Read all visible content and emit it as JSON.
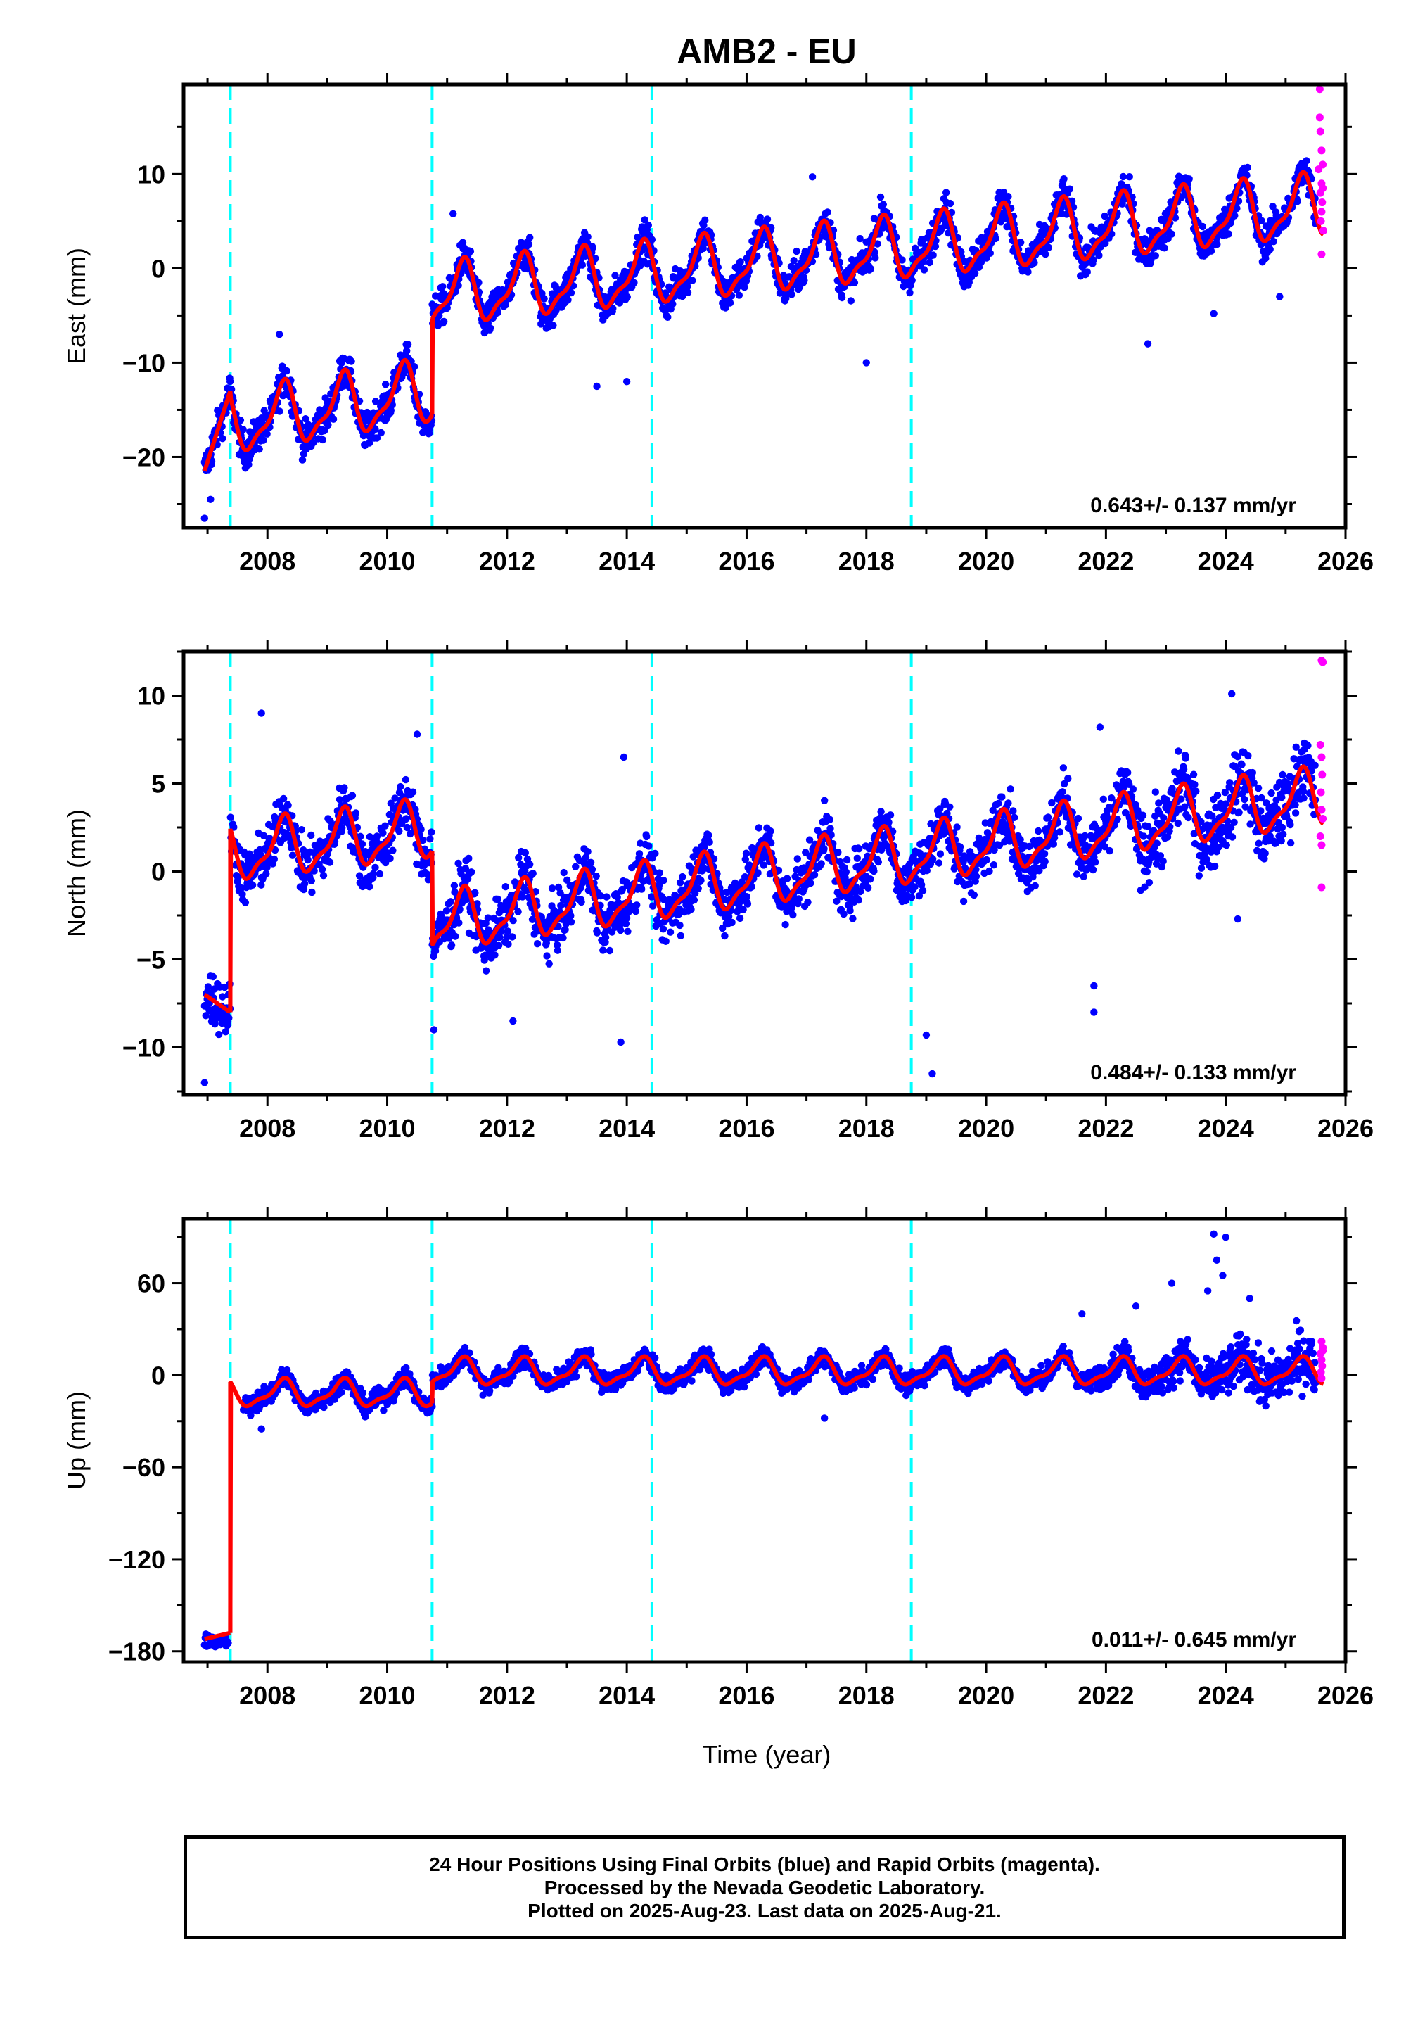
{
  "title": "AMB2 - EU",
  "xlabel": "Time (year)",
  "colors": {
    "final_orbits": "#0000ff",
    "rapid_orbits": "#ff00ff",
    "model": "#ff0000",
    "events": "#00ffff",
    "frame": "#000000"
  },
  "chart_data": [
    {
      "type": "scatter",
      "panel": "east",
      "ylabel": "East (mm)",
      "rate_label": "0.643+/- 0.137 mm/yr",
      "xlim": [
        2006.6,
        2026.0
      ],
      "ylim": [
        -27.5,
        19.5
      ],
      "xticks": [
        2008,
        2010,
        2012,
        2014,
        2016,
        2018,
        2020,
        2022,
        2024,
        2026
      ],
      "yticks": [
        -20,
        -10,
        0,
        10
      ],
      "event_lines": [
        2007.38,
        2010.75,
        2014.42,
        2018.75
      ],
      "series": [
        {
          "name": "Final Orbits",
          "color": "#0000ff",
          "span": [
            2006.95,
            2025.5
          ],
          "spread": 1.8
        },
        {
          "name": "Rapid Orbits",
          "color": "#ff00ff",
          "span": [
            2025.5,
            2025.65
          ]
        },
        {
          "name": "Model",
          "color": "#ff0000"
        }
      ],
      "model_segments": [
        {
          "x": [
            2006.95,
            2007.38
          ],
          "y": [
            -21.5,
            -13.0
          ]
        },
        {
          "x": [
            2007.38,
            2010.75
          ],
          "y_start": -16.5,
          "trend": 1.0,
          "annual_amplitude": 3.0
        },
        {
          "x": [
            2010.75,
            2025.63
          ],
          "y_start": -3.0,
          "trend": 0.643,
          "annual_amplitude": 3.0
        }
      ],
      "outliers": [
        {
          "x": 2006.95,
          "y": -26.5
        },
        {
          "x": 2007.05,
          "y": -24.5
        },
        {
          "x": 2008.2,
          "y": -7.0
        },
        {
          "x": 2011.1,
          "y": 5.8
        },
        {
          "x": 2013.5,
          "y": -12.5
        },
        {
          "x": 2014.0,
          "y": -12.0
        },
        {
          "x": 2017.1,
          "y": 9.7
        },
        {
          "x": 2018.0,
          "y": -10.0
        },
        {
          "x": 2022.7,
          "y": -8.0
        },
        {
          "x": 2023.8,
          "y": -4.8
        },
        {
          "x": 2024.9,
          "y": -3.0
        }
      ],
      "rapid_points": [
        {
          "x": 2025.57,
          "y": 19.0
        },
        {
          "x": 2025.57,
          "y": 16.0
        },
        {
          "x": 2025.58,
          "y": 14.5
        },
        {
          "x": 2025.6,
          "y": 12.5
        },
        {
          "x": 2025.62,
          "y": 11.0
        },
        {
          "x": 2025.6,
          "y": 9.0
        },
        {
          "x": 2025.58,
          "y": 8.0
        },
        {
          "x": 2025.61,
          "y": 7.0
        },
        {
          "x": 2025.6,
          "y": 6.0
        },
        {
          "x": 2025.59,
          "y": 5.0
        },
        {
          "x": 2025.63,
          "y": 4.0
        },
        {
          "x": 2025.6,
          "y": 1.5
        },
        {
          "x": 2025.55,
          "y": 10.5
        },
        {
          "x": 2025.62,
          "y": 8.5
        }
      ]
    },
    {
      "type": "scatter",
      "panel": "north",
      "ylabel": "North (mm)",
      "rate_label": "0.484+/- 0.133 mm/yr",
      "xlim": [
        2006.6,
        2026.0
      ],
      "ylim": [
        -12.7,
        12.5
      ],
      "xticks": [
        2008,
        2010,
        2012,
        2014,
        2016,
        2018,
        2020,
        2022,
        2024,
        2026
      ],
      "yticks": [
        -10,
        -5,
        0,
        5,
        10
      ],
      "event_lines": [
        2007.38,
        2010.75,
        2014.42,
        2018.75
      ],
      "series": [
        {
          "name": "Final Orbits",
          "color": "#0000ff",
          "span": [
            2006.95,
            2025.5
          ],
          "spread": 1.5
        },
        {
          "name": "Rapid Orbits",
          "color": "#ff00ff",
          "span": [
            2025.5,
            2025.65
          ]
        },
        {
          "name": "Model",
          "color": "#ff0000"
        }
      ],
      "model_segments": [
        {
          "x": [
            2006.95,
            2007.38
          ],
          "y": [
            -7.0,
            -8.0
          ]
        },
        {
          "x": [
            2007.38,
            2010.75
          ],
          "y_start": 1.0,
          "trend": 0.4,
          "annual_amplitude": 1.5
        },
        {
          "x": [
            2010.75,
            2025.63
          ],
          "y_start": -3.0,
          "trend": 0.484,
          "annual_amplitude": 1.5
        }
      ],
      "outliers": [
        {
          "x": 2006.95,
          "y": -12.0
        },
        {
          "x": 2007.9,
          "y": 9.0
        },
        {
          "x": 2010.5,
          "y": 7.8
        },
        {
          "x": 2010.78,
          "y": -9.0
        },
        {
          "x": 2012.1,
          "y": -8.5
        },
        {
          "x": 2013.9,
          "y": -9.7
        },
        {
          "x": 2013.95,
          "y": 6.5
        },
        {
          "x": 2019.0,
          "y": -9.3
        },
        {
          "x": 2019.1,
          "y": -11.5
        },
        {
          "x": 2021.8,
          "y": -8.0
        },
        {
          "x": 2021.9,
          "y": 8.2
        },
        {
          "x": 2024.1,
          "y": 10.1
        },
        {
          "x": 2024.2,
          "y": -2.7
        },
        {
          "x": 2021.8,
          "y": -6.5
        }
      ],
      "rapid_points": [
        {
          "x": 2025.6,
          "y": 12.0
        },
        {
          "x": 2025.62,
          "y": 11.9
        },
        {
          "x": 2025.58,
          "y": 7.2
        },
        {
          "x": 2025.6,
          "y": 6.5
        },
        {
          "x": 2025.61,
          "y": 5.5
        },
        {
          "x": 2025.59,
          "y": 4.5
        },
        {
          "x": 2025.6,
          "y": 3.5
        },
        {
          "x": 2025.62,
          "y": 3.0
        },
        {
          "x": 2025.58,
          "y": 2.0
        },
        {
          "x": 2025.6,
          "y": 1.5
        },
        {
          "x": 2025.6,
          "y": -0.9
        }
      ]
    },
    {
      "type": "scatter",
      "panel": "up",
      "ylabel": "Up (mm)",
      "rate_label": "0.011+/- 0.645 mm/yr",
      "xlim": [
        2006.6,
        2026.0
      ],
      "ylim": [
        -187,
        102
      ],
      "xticks": [
        2008,
        2010,
        2012,
        2014,
        2016,
        2018,
        2020,
        2022,
        2024,
        2026
      ],
      "yticks": [
        -180,
        -120,
        -60,
        0,
        60
      ],
      "event_lines": [
        2007.38,
        2010.75,
        2014.42,
        2018.75
      ],
      "series": [
        {
          "name": "Final Orbits",
          "color": "#0000ff",
          "span": [
            2007.6,
            2025.5
          ],
          "spread": 6.0
        },
        {
          "name": "Rapid Orbits",
          "color": "#ff00ff",
          "span": [
            2025.5,
            2025.65
          ]
        },
        {
          "name": "Model",
          "color": "#ff0000"
        }
      ],
      "model_segments": [
        {
          "x": [
            2006.95,
            2007.38
          ],
          "y": [
            -172.0,
            -168.0
          ]
        },
        {
          "x": [
            2007.38,
            2010.75
          ],
          "y_start": -12.0,
          "trend": 0.0,
          "annual_amplitude": 8.0
        },
        {
          "x": [
            2010.75,
            2025.63
          ],
          "y_start": 2.0,
          "trend": 0.011,
          "annual_amplitude": 8.0
        }
      ],
      "pre_event_cluster": {
        "x": [
          2006.95,
          2007.35
        ],
        "y": -173,
        "spread": 4.0
      },
      "outliers": [
        {
          "x": 2007.9,
          "y": -35.0
        },
        {
          "x": 2017.3,
          "y": -28.0
        },
        {
          "x": 2023.1,
          "y": 60.0
        },
        {
          "x": 2023.8,
          "y": 92.0
        },
        {
          "x": 2024.0,
          "y": 90.0
        },
        {
          "x": 2023.85,
          "y": 75.0
        },
        {
          "x": 2023.95,
          "y": 65.0
        },
        {
          "x": 2024.4,
          "y": 50.0
        },
        {
          "x": 2023.7,
          "y": 55.0
        },
        {
          "x": 2021.6,
          "y": 40.0
        },
        {
          "x": 2022.5,
          "y": 45.0
        }
      ],
      "rapid_points": [
        {
          "x": 2025.6,
          "y": 22.0
        },
        {
          "x": 2025.62,
          "y": 18.0
        },
        {
          "x": 2025.58,
          "y": 14.0
        },
        {
          "x": 2025.6,
          "y": 10.0
        },
        {
          "x": 2025.61,
          "y": 6.0
        },
        {
          "x": 2025.59,
          "y": 2.0
        },
        {
          "x": 2025.6,
          "y": -2.0
        },
        {
          "x": 2025.62,
          "y": 16.0
        }
      ]
    }
  ],
  "footer": {
    "line1": "24 Hour Positions Using Final Orbits (blue) and Rapid Orbits (magenta).",
    "line2": "Processed by the Nevada Geodetic Laboratory.",
    "line3": "Plotted on 2025-Aug-23. Last data on 2025-Aug-21."
  }
}
